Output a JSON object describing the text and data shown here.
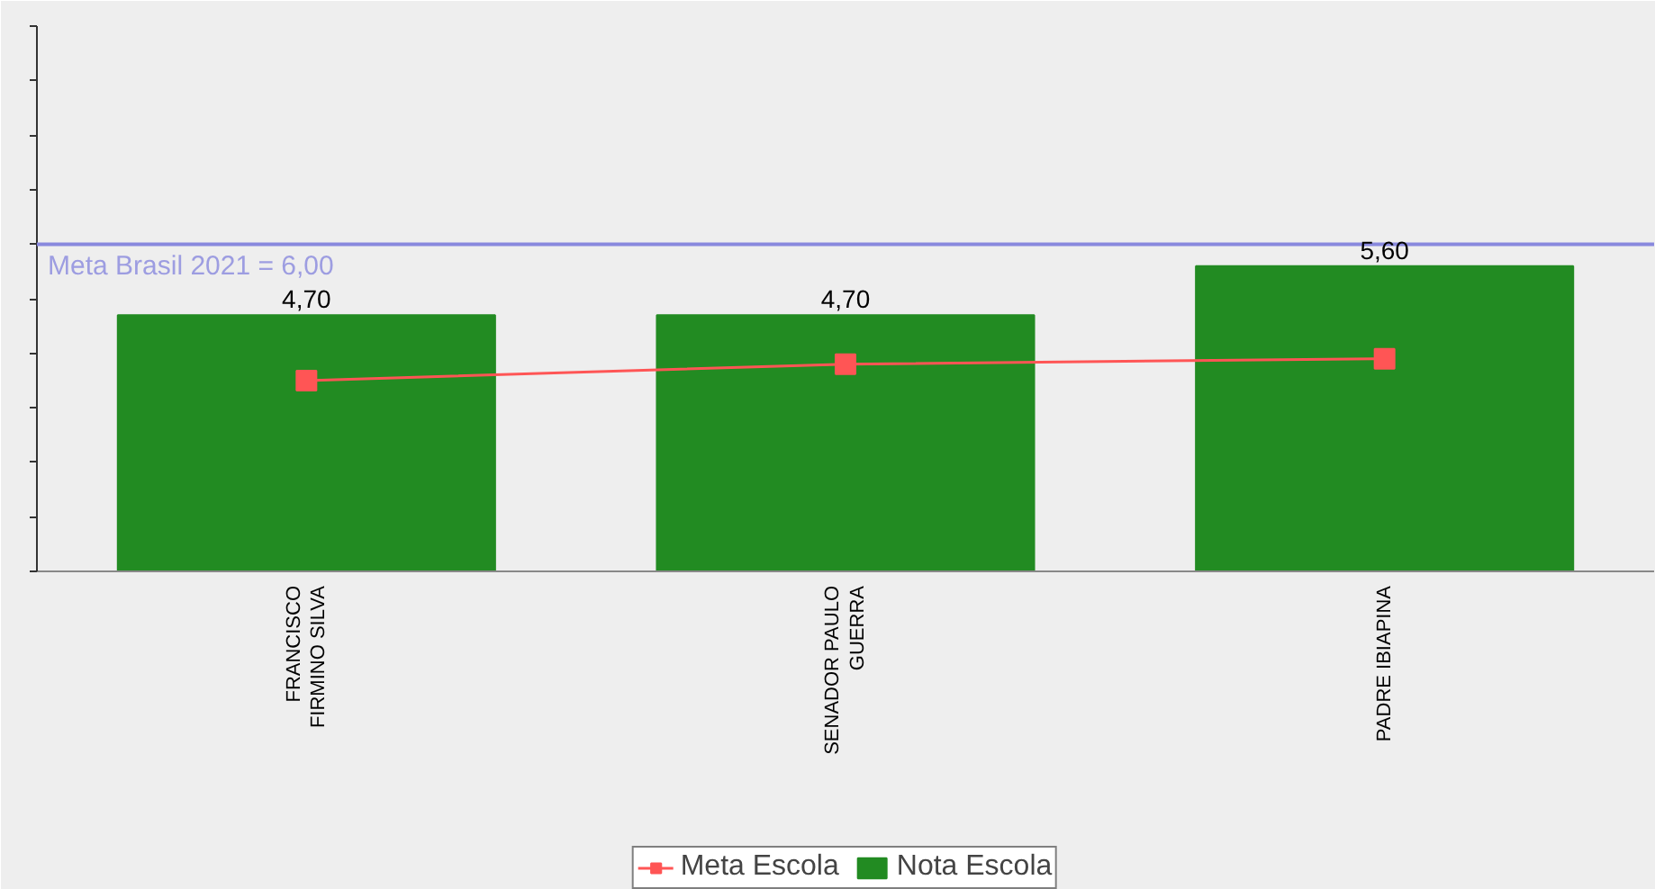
{
  "chart_data": {
    "type": "bar",
    "categories": [
      "FRANCISCO\nFIRMINO SILVA",
      "SENADOR PAULO\nGUERRA",
      "PADRE IBIAPINA"
    ],
    "series": [
      {
        "name": "Meta Escola",
        "type": "line",
        "color": "#ff5555",
        "marker": "square",
        "values": [
          3.5,
          3.8,
          3.9
        ]
      },
      {
        "name": "Nota Escola",
        "color": "#228b22",
        "values": [
          4.7,
          4.7,
          5.6
        ],
        "value_labels": [
          "4,70",
          "4,70",
          "5,60"
        ]
      }
    ],
    "ylim": [
      0,
      10
    ],
    "yticks": [
      {
        "value": 0,
        "label": null
      },
      {
        "value": 1,
        "label": null
      },
      {
        "value": 2,
        "label": null
      },
      {
        "value": 3,
        "label": null
      },
      {
        "value": 4,
        "label": null
      },
      {
        "value": 5,
        "label": null
      },
      {
        "value": 6,
        "label": null
      },
      {
        "value": 7,
        "label": null
      },
      {
        "value": 8,
        "label": null
      },
      {
        "value": 9,
        "label": null
      },
      {
        "value": 10,
        "label": null
      }
    ],
    "ref_lines": [
      {
        "axis": "y",
        "value": 6.0,
        "label": "Meta Brasil 2021 = 6,00",
        "color": "#8888dd"
      }
    ],
    "grid": false,
    "legend": "bottom"
  }
}
